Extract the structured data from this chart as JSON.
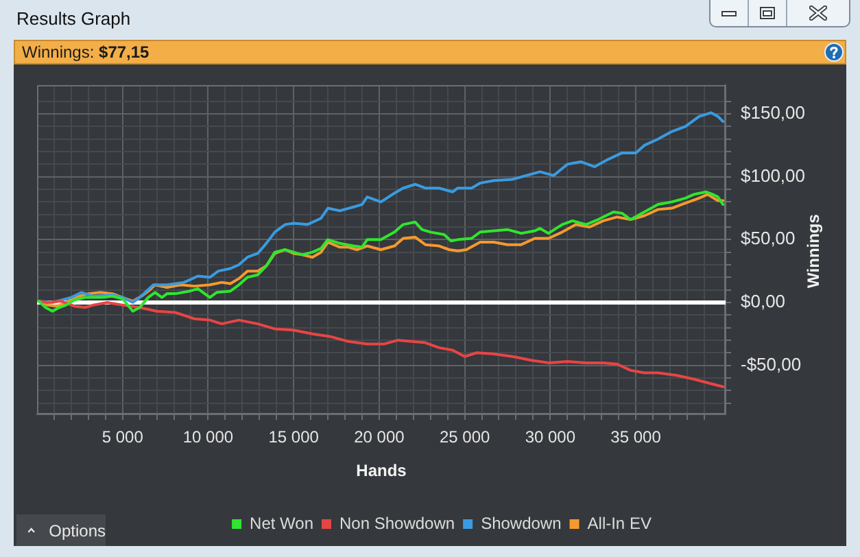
{
  "chart_data": {
    "type": "line",
    "title": "Results Graph",
    "subtitle": "Winnings: $77,15",
    "xlabel": "Hands",
    "ylabel": "Winnings",
    "annotations": [
      "Options"
    ],
    "xlim": [
      0,
      40250
    ],
    "ylim": [
      -89,
      173
    ],
    "xticks": [
      {
        "value": 1000,
        "label": null
      },
      {
        "value": 2000,
        "label": null
      },
      {
        "value": 3000,
        "label": null
      },
      {
        "value": 4000,
        "label": null
      },
      {
        "value": 5000,
        "label": "5 000"
      },
      {
        "value": 6000,
        "label": null
      },
      {
        "value": 7000,
        "label": null
      },
      {
        "value": 8000,
        "label": null
      },
      {
        "value": 9000,
        "label": null
      },
      {
        "value": 10000,
        "label": "10 000"
      },
      {
        "value": 11000,
        "label": null
      },
      {
        "value": 12000,
        "label": null
      },
      {
        "value": 13000,
        "label": null
      },
      {
        "value": 14000,
        "label": null
      },
      {
        "value": 15000,
        "label": "15 000"
      },
      {
        "value": 16000,
        "label": null
      },
      {
        "value": 17000,
        "label": null
      },
      {
        "value": 18000,
        "label": null
      },
      {
        "value": 19000,
        "label": null
      },
      {
        "value": 20000,
        "label": "20 000"
      },
      {
        "value": 21000,
        "label": null
      },
      {
        "value": 22000,
        "label": null
      },
      {
        "value": 23000,
        "label": null
      },
      {
        "value": 24000,
        "label": null
      },
      {
        "value": 25000,
        "label": "25 000"
      },
      {
        "value": 26000,
        "label": null
      },
      {
        "value": 27000,
        "label": null
      },
      {
        "value": 28000,
        "label": null
      },
      {
        "value": 29000,
        "label": null
      },
      {
        "value": 30000,
        "label": "30 000"
      },
      {
        "value": 31000,
        "label": null
      },
      {
        "value": 32000,
        "label": null
      },
      {
        "value": 33000,
        "label": null
      },
      {
        "value": 34000,
        "label": null
      },
      {
        "value": 35000,
        "label": "35 000"
      },
      {
        "value": 36000,
        "label": null
      },
      {
        "value": 37000,
        "label": null
      },
      {
        "value": 38000,
        "label": null
      },
      {
        "value": 39000,
        "label": null
      }
    ],
    "yticks": [
      {
        "value": -80,
        "label": null
      },
      {
        "value": -70,
        "label": null
      },
      {
        "value": -60,
        "label": null
      },
      {
        "value": -50,
        "label": "-$50,00"
      },
      {
        "value": -40,
        "label": null
      },
      {
        "value": -30,
        "label": null
      },
      {
        "value": -20,
        "label": null
      },
      {
        "value": -10,
        "label": null
      },
      {
        "value": 0,
        "label": "$0,00"
      },
      {
        "value": 10,
        "label": null
      },
      {
        "value": 20,
        "label": null
      },
      {
        "value": 30,
        "label": null
      },
      {
        "value": 40,
        "label": null
      },
      {
        "value": 50,
        "label": "$50,00"
      },
      {
        "value": 60,
        "label": null
      },
      {
        "value": 70,
        "label": null
      },
      {
        "value": 80,
        "label": null
      },
      {
        "value": 90,
        "label": null
      },
      {
        "value": 100,
        "label": "$100,00"
      },
      {
        "value": 110,
        "label": null
      },
      {
        "value": 120,
        "label": null
      },
      {
        "value": 130,
        "label": null
      },
      {
        "value": 140,
        "label": null
      },
      {
        "value": 150,
        "label": "$150,00"
      },
      {
        "value": 160,
        "label": null
      }
    ],
    "grid": true,
    "legend": "bottom",
    "ref_lines": [
      {
        "axis": "y",
        "value": 0,
        "color": "#ffffff"
      }
    ],
    "series": [
      {
        "name": "Net Won",
        "color": "#2fe52f",
        "x": [
          100,
          500,
          900,
          1300,
          1700,
          2200,
          2800,
          3300,
          3800,
          4400,
          5000,
          5600,
          6000,
          6500,
          6900,
          7300,
          7600,
          8100,
          8900,
          9400,
          10100,
          10500,
          11300,
          11800,
          12300,
          12900,
          13400,
          13900,
          14500,
          15000,
          15500,
          16100,
          16600,
          17000,
          17700,
          18500,
          19000,
          19300,
          20100,
          20900,
          21400,
          22100,
          22500,
          23000,
          23800,
          24200,
          24600,
          25400,
          25900,
          26700,
          27500,
          28300,
          29100,
          29400,
          29900,
          30700,
          31300,
          32100,
          32800,
          33700,
          34200,
          34700,
          35500,
          36300,
          37100,
          37900,
          38400,
          39100,
          39500,
          39800,
          40100
        ],
        "values": [
          1,
          -4,
          -7,
          -4,
          -2,
          2,
          4,
          4,
          4,
          5,
          3,
          -7,
          -4,
          4,
          8,
          4,
          7,
          7,
          9,
          11,
          4,
          8,
          9,
          14,
          20,
          22,
          29,
          40,
          42,
          40,
          38,
          40,
          43,
          50,
          47,
          45,
          44,
          50,
          50,
          56,
          62,
          64,
          58,
          56,
          54,
          49,
          50,
          51,
          56,
          57,
          58,
          55,
          57,
          59,
          55,
          62,
          65,
          62,
          66,
          72,
          71,
          66,
          72,
          78,
          80,
          83,
          86,
          88,
          86,
          84,
          78
        ]
      },
      {
        "name": "Non Showdown",
        "color": "#e64545",
        "x": [
          100,
          600,
          1400,
          2200,
          2800,
          3300,
          4100,
          5000,
          6000,
          7000,
          8100,
          9200,
          10100,
          10800,
          11800,
          12900,
          13900,
          15000,
          16100,
          17100,
          18200,
          19300,
          20300,
          21100,
          21900,
          22700,
          23500,
          24300,
          25000,
          25700,
          26700,
          27800,
          28900,
          29900,
          31000,
          32100,
          33100,
          33900,
          34700,
          35500,
          36300,
          37400,
          38400,
          39500,
          40100
        ],
        "values": [
          1,
          0,
          1,
          -3,
          -4,
          -2,
          0,
          -2,
          -4,
          -7,
          -8,
          -13,
          -14,
          -17,
          -14,
          -17,
          -21,
          -22,
          -25,
          -27,
          -31,
          -33,
          -33,
          -30,
          -31,
          -32,
          -36,
          -38,
          -43,
          -40,
          -41,
          -43,
          -46,
          -48,
          -47,
          -48,
          -48,
          -49,
          -54,
          -56,
          -56,
          -58,
          -61,
          -65,
          -67
        ]
      },
      {
        "name": "Showdown",
        "color": "#3a9be0",
        "x": [
          100,
          900,
          2000,
          2600,
          3300,
          4400,
          5000,
          5600,
          6000,
          6800,
          7600,
          8600,
          9400,
          10100,
          10600,
          11300,
          11800,
          12300,
          12900,
          13400,
          13900,
          14500,
          15000,
          15800,
          16600,
          17000,
          17700,
          18500,
          19000,
          19300,
          20100,
          20900,
          21400,
          22100,
          22700,
          23500,
          24300,
          24600,
          25400,
          25900,
          26700,
          27800,
          28600,
          29400,
          30200,
          31000,
          31800,
          32600,
          33400,
          34200,
          35000,
          35500,
          36300,
          37100,
          37900,
          38700,
          39400,
          39800,
          40100
        ],
        "values": [
          1,
          0,
          4,
          8,
          5,
          6,
          4,
          0,
          4,
          14,
          14,
          16,
          21,
          20,
          25,
          27,
          30,
          36,
          39,
          47,
          56,
          62,
          63,
          62,
          67,
          75,
          73,
          76,
          78,
          84,
          80,
          87,
          91,
          94,
          91,
          91,
          88,
          91,
          91,
          95,
          97,
          98,
          101,
          104,
          101,
          110,
          112,
          108,
          114,
          119,
          119,
          125,
          130,
          136,
          140,
          148,
          151,
          148,
          144
        ]
      },
      {
        "name": "All-In EV",
        "color": "#f5992e",
        "x": [
          100,
          600,
          1200,
          1700,
          2200,
          3000,
          3700,
          4400,
          5000,
          5600,
          6100,
          6500,
          6900,
          7600,
          8400,
          9200,
          10100,
          10800,
          11300,
          11800,
          12300,
          12900,
          13400,
          13900,
          14500,
          15000,
          15500,
          16100,
          16600,
          17000,
          17700,
          18200,
          18700,
          19300,
          20100,
          20900,
          21400,
          22100,
          22700,
          23500,
          24100,
          24600,
          25100,
          25900,
          26700,
          27500,
          28300,
          29100,
          29900,
          30700,
          31500,
          32300,
          33100,
          33900,
          34700,
          35500,
          36300,
          37100,
          37900,
          38700,
          39200,
          39800,
          40100
        ],
        "values": [
          1,
          -2,
          -3,
          0,
          4,
          7,
          8,
          7,
          4,
          1,
          5,
          9,
          14,
          12,
          14,
          13,
          14,
          16,
          15,
          19,
          25,
          25,
          29,
          39,
          42,
          39,
          38,
          36,
          40,
          48,
          44,
          44,
          42,
          45,
          42,
          45,
          51,
          52,
          46,
          45,
          42,
          41,
          42,
          48,
          48,
          46,
          46,
          51,
          51,
          56,
          62,
          60,
          65,
          68,
          66,
          69,
          74,
          75,
          79,
          83,
          86,
          81,
          81
        ]
      }
    ]
  }
}
